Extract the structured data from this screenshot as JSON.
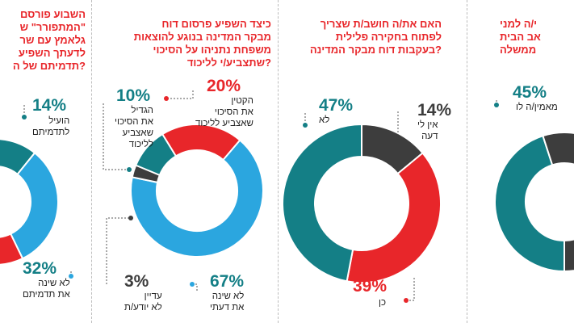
{
  "colors": {
    "teal": "#147f86",
    "red": "#e8262a",
    "blue": "#2ba6df",
    "dark": "#3d3d3d"
  },
  "chart_data": [
    {
      "type": "pie",
      "panel": "far-right (cropped)",
      "title": "…י/ה למנ… …אב הבית …ממשלה",
      "title_lines": [
        "י/ה למני",
        "אב הבית",
        "ממשלה"
      ],
      "slices": [
        {
          "label": "מאמין/ה לו",
          "value": 45,
          "display": "45%",
          "color": "teal"
        }
      ]
    },
    {
      "type": "pie",
      "panel": "right-middle",
      "title_lines": [
        "האם את/ה חושב/ת שצריך",
        "לפתוח בחקירה פלילית",
        "?בעקבות דוח מבקר המדינה"
      ],
      "slices": [
        {
          "label": "אין לי דעה",
          "label_lines": [
            "אין לי",
            "דעה"
          ],
          "value": 14,
          "display": "14%",
          "color": "dark"
        },
        {
          "label": "כן",
          "value": 39,
          "display": "39%",
          "color": "red"
        },
        {
          "label": "לא",
          "value": 47,
          "display": "47%",
          "color": "teal"
        }
      ]
    },
    {
      "type": "pie",
      "panel": "left-middle",
      "title_lines": [
        "כיצד השפיע פרסום דוח",
        "מבקר המדינה בנוגע להוצאות",
        "משפחת נתניהו על הסיכוי",
        "?שתצביע/י לליכוד"
      ],
      "slices": [
        {
          "label": "הקטין את הסיכוי שאצביע לליכוד",
          "label_lines": [
            "הקטין",
            "את הסיכוי",
            "שאצביע לליכוד"
          ],
          "value": 20,
          "display": "20%",
          "color": "red"
        },
        {
          "label": "לא שינה את דעתי",
          "label_lines": [
            "לא שינה",
            "את דעתי"
          ],
          "value": 67,
          "display": "67%",
          "color": "blue"
        },
        {
          "label": "עדיין לא יודע/ת",
          "label_lines": [
            "עדיין",
            "לא יודע/ת"
          ],
          "value": 3,
          "display": "3%",
          "color": "dark"
        },
        {
          "label": "הגדיל את הסיכוי שאצביע לליכוד",
          "label_lines": [
            "הגדיל",
            "את הסיכוי",
            "שאצביע",
            "לליכוד"
          ],
          "value": 10,
          "display": "10%",
          "color": "teal"
        }
      ]
    },
    {
      "type": "pie",
      "panel": "far-left (cropped)",
      "title_lines": [
        "השבוע פורסם",
        "\"המתפורר\" ש",
        "גלאמץ עם שר",
        "לדעתך השפיע",
        "?תדמיתם של ה"
      ],
      "slices": [
        {
          "label": "הועיל לתדמיתם",
          "label_lines": [
            "הועיל",
            "לתדמיתם"
          ],
          "value": 14,
          "display": "14%",
          "color": "teal"
        },
        {
          "label": "לא שינה את תדמיתם",
          "label_lines": [
            "לא שינה",
            "את תדמיתם"
          ],
          "value": 32,
          "display": "32%",
          "color": "blue"
        }
      ]
    }
  ]
}
